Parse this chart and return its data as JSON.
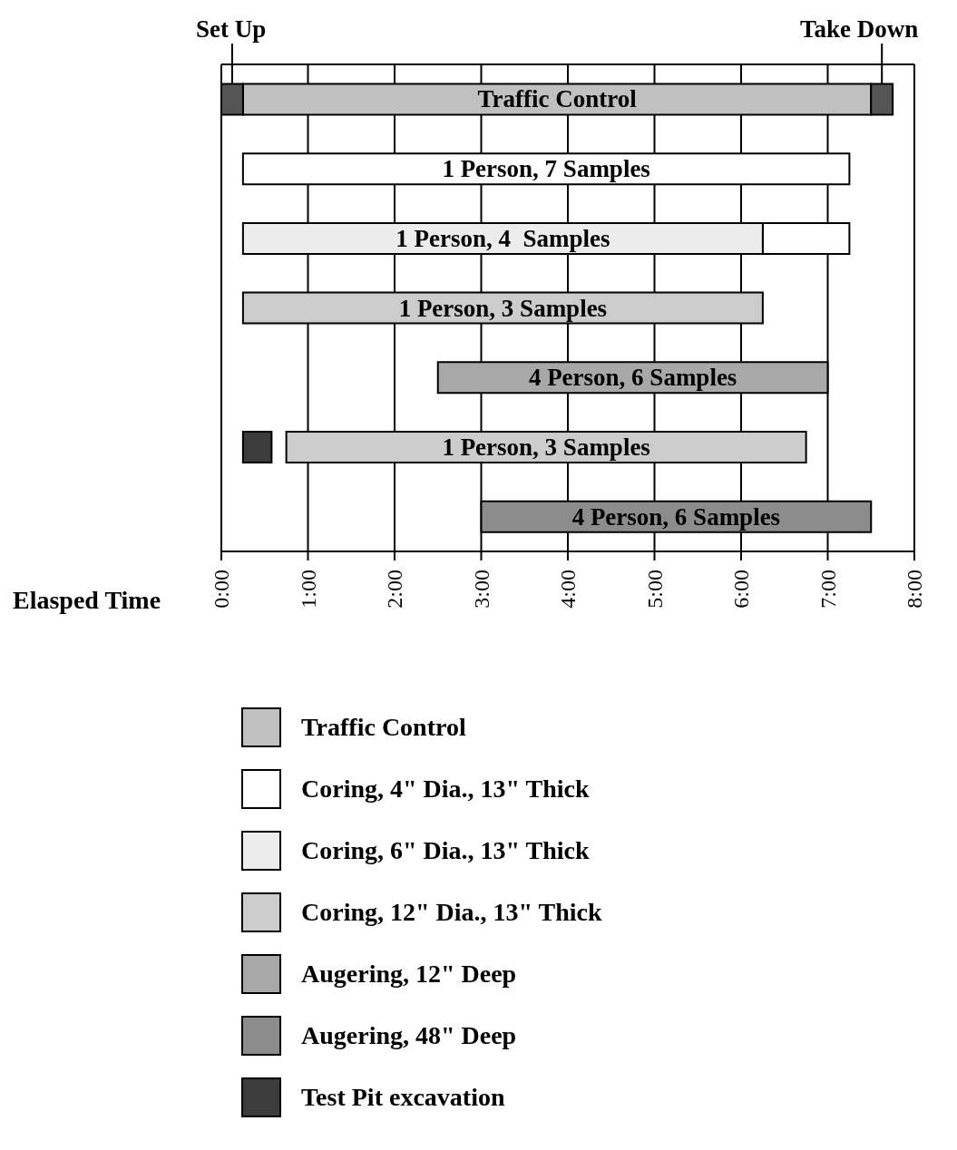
{
  "chart_data": {
    "type": "bar",
    "orientation": "horizontal",
    "xlabel": "Elasped Time",
    "categories": [
      null,
      null,
      null,
      null,
      null,
      null,
      null
    ],
    "xlim": [
      0,
      8
    ],
    "xticks": [
      {
        "value": 0,
        "label": "0:00"
      },
      {
        "value": 1,
        "label": "1:00"
      },
      {
        "value": 2,
        "label": "2:00"
      },
      {
        "value": 3,
        "label": "3:00"
      },
      {
        "value": 4,
        "label": "4:00"
      },
      {
        "value": 5,
        "label": "5:00"
      },
      {
        "value": 6,
        "label": "6:00"
      },
      {
        "value": 7,
        "label": "7:00"
      },
      {
        "value": 8,
        "label": "8:00"
      }
    ],
    "tick_labels": "x",
    "grid": "x",
    "legend": "bottom",
    "series": [
      {
        "name": "Traffic Control",
        "color": "#c0c0c0",
        "base": [
          0.25,
          null,
          null,
          null,
          null,
          null,
          null
        ],
        "values": [
          7.25,
          null,
          null,
          null,
          null,
          null,
          null
        ]
      },
      {
        "name": "Coring, 4\" Dia., 13\" Thick",
        "color": "#ffffff",
        "base": [
          null,
          0.25,
          6.25,
          null,
          null,
          null,
          null
        ],
        "values": [
          null,
          7.0,
          1.0,
          null,
          null,
          null,
          null
        ]
      },
      {
        "name": "Coring, 6\" Dia., 13\" Thick",
        "color": "#ececec",
        "base": [
          null,
          null,
          0.25,
          null,
          null,
          null,
          null
        ],
        "values": [
          null,
          null,
          6.0,
          null,
          null,
          null,
          null
        ]
      },
      {
        "name": "Coring, 12\" Dia., 13\" Thick",
        "color": "#cccccc",
        "base": [
          null,
          null,
          null,
          0.25,
          null,
          0.75,
          null
        ],
        "values": [
          null,
          null,
          null,
          6.0,
          null,
          6.0,
          null
        ]
      },
      {
        "name": "Augering, 12\" Deep",
        "color": "#a8a8a8",
        "base": [
          null,
          null,
          null,
          null,
          2.5,
          null,
          null
        ],
        "values": [
          null,
          null,
          null,
          null,
          4.5,
          null,
          null
        ]
      },
      {
        "name": "Augering, 48\" Deep",
        "color": "#8c8c8c",
        "base": [
          null,
          null,
          null,
          null,
          null,
          null,
          3.0
        ],
        "values": [
          null,
          null,
          null,
          null,
          null,
          null,
          4.5
        ]
      },
      {
        "name": "Test Pit excavation",
        "color": "#3c3c3c",
        "base": [
          null,
          null,
          null,
          null,
          null,
          0.25,
          null
        ],
        "values": [
          null,
          null,
          null,
          null,
          null,
          0.33,
          null
        ]
      },
      {
        "color": "#555555",
        "base": [
          0,
          null,
          null,
          null,
          null,
          null,
          null
        ],
        "values": [
          0.25,
          null,
          null,
          null,
          null,
          null,
          null
        ]
      },
      {
        "color": "#555555",
        "base": [
          7.5,
          null,
          null,
          null,
          null,
          null,
          null
        ],
        "values": [
          0.25,
          null,
          null,
          null,
          null,
          null,
          null
        ]
      }
    ],
    "annotations": [
      "Set Up",
      "Take Down",
      "Traffic Control",
      "1 Person, 7 Samples",
      "1 Person, 4  Samples",
      "1 Person, 3 Samples",
      "4 Person, 6 Samples",
      "1 Person, 3 Samples",
      "4 Person, 6 Samples"
    ]
  }
}
